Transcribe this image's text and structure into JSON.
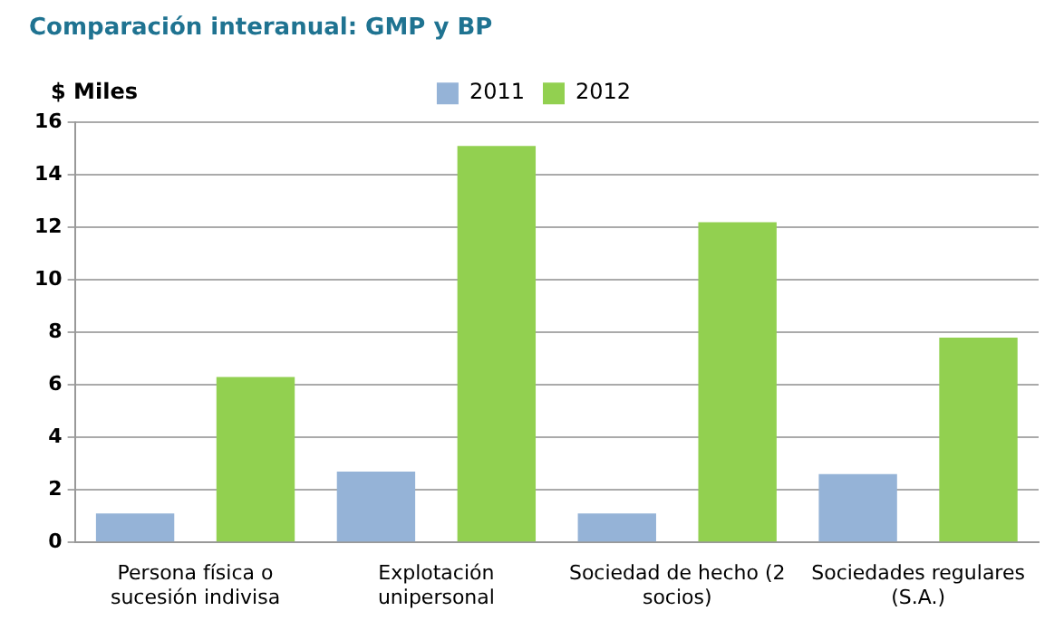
{
  "chart_data": {
    "type": "bar",
    "title": "Comparación interanual: GMP y BP",
    "ylabel": "$ Miles",
    "categories": [
      "Persona física o sucesión indivisa",
      "Explotación unipersonal",
      "Sociedad de hecho (2 socios)",
      "Sociedades regulares (S.A.)"
    ],
    "series": [
      {
        "name": "2011",
        "color": "#95b3d7",
        "values": [
          1.1,
          2.7,
          1.1,
          2.6
        ]
      },
      {
        "name": "2012",
        "color": "#92d050",
        "values": [
          6.3,
          15.1,
          12.2,
          7.8
        ]
      }
    ],
    "ylim": [
      0,
      16
    ],
    "yticks": [
      0,
      2,
      4,
      6,
      8,
      10,
      12,
      14,
      16
    ],
    "grid": "y",
    "legend": "top"
  }
}
